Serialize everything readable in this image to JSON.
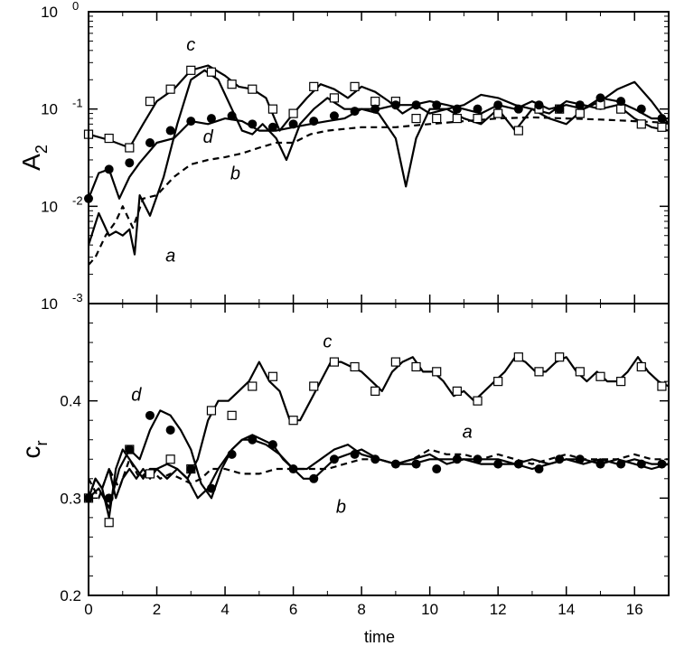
{
  "chart_data": [
    {
      "panel": "top",
      "type": "line",
      "ylabel_main": "A",
      "ylabel_sub": "2",
      "yscale": "log",
      "xlim": [
        0,
        17
      ],
      "ylim": [
        0.001,
        1
      ],
      "y_tick_labels": [
        {
          "base": "10",
          "exp": "-3"
        },
        {
          "base": "10",
          "exp": "-2"
        },
        {
          "base": "10",
          "exp": "-1"
        },
        {
          "base": "10",
          "exp": "0"
        }
      ],
      "series": [
        {
          "name": "a",
          "style": "solid",
          "marker": "none",
          "x": [
            0,
            0.3,
            0.6,
            0.8,
            1.0,
            1.2,
            1.35,
            1.5,
            1.8,
            2.2,
            2.6,
            3.0,
            3.4,
            3.8,
            4.2,
            4.5,
            4.8,
            5.1,
            5.5,
            5.8,
            6.2,
            6.6,
            7.0,
            7.5,
            8.0,
            8.5,
            9.0,
            9.3,
            9.6,
            10.0,
            10.5,
            11.0,
            11.5,
            12.0,
            12.5,
            13.0,
            13.5,
            14.0,
            14.5,
            15.0,
            15.5,
            16.0,
            16.5,
            17.0
          ],
          "y": [
            0.004,
            0.0085,
            0.005,
            0.0055,
            0.005,
            0.0058,
            0.0032,
            0.013,
            0.008,
            0.02,
            0.07,
            0.2,
            0.25,
            0.2,
            0.1,
            0.06,
            0.055,
            0.07,
            0.05,
            0.03,
            0.07,
            0.1,
            0.13,
            0.1,
            0.1,
            0.09,
            0.05,
            0.016,
            0.05,
            0.1,
            0.1,
            0.11,
            0.14,
            0.13,
            0.11,
            0.1,
            0.08,
            0.07,
            0.1,
            0.12,
            0.16,
            0.19,
            0.12,
            0.07
          ]
        },
        {
          "name": "b",
          "style": "dashed",
          "marker": "none",
          "x": [
            0,
            0.2,
            0.5,
            0.8,
            1.0,
            1.3,
            1.6,
            2.0,
            2.5,
            3.0,
            3.5,
            4.0,
            4.5,
            5.0,
            5.5,
            6.0,
            6.5,
            7.0,
            8.0,
            9.0,
            10.0,
            11.0,
            12.0,
            13.0,
            14.0,
            15.0,
            16.0,
            17.0
          ],
          "y": [
            0.0025,
            0.003,
            0.005,
            0.007,
            0.01,
            0.006,
            0.012,
            0.013,
            0.02,
            0.027,
            0.03,
            0.032,
            0.035,
            0.04,
            0.045,
            0.045,
            0.055,
            0.06,
            0.065,
            0.065,
            0.07,
            0.075,
            0.08,
            0.082,
            0.08,
            0.078,
            0.075,
            0.072
          ]
        },
        {
          "name": "c",
          "style": "solid",
          "marker": "open-square",
          "x": [
            0,
            0.6,
            1.2,
            1.6,
            2.0,
            2.5,
            3.0,
            3.5,
            4.0,
            4.4,
            4.8,
            5.2,
            5.6,
            6.0,
            6.4,
            6.8,
            7.2,
            7.6,
            8.0,
            8.4,
            8.8,
            9.2,
            9.6,
            10.0,
            10.5,
            11.0,
            11.5,
            12.0,
            12.5,
            13.0,
            13.5,
            14.0,
            14.5,
            15.0,
            15.5,
            16.0,
            16.5,
            17.0
          ],
          "y": [
            0.055,
            0.048,
            0.04,
            0.07,
            0.12,
            0.16,
            0.25,
            0.28,
            0.22,
            0.17,
            0.16,
            0.13,
            0.06,
            0.09,
            0.13,
            0.18,
            0.16,
            0.13,
            0.17,
            0.15,
            0.12,
            0.09,
            0.11,
            0.09,
            0.1,
            0.08,
            0.07,
            0.1,
            0.06,
            0.1,
            0.09,
            0.12,
            0.11,
            0.1,
            0.11,
            0.08,
            0.065,
            0.06
          ],
          "marker_x": [
            0,
            0.6,
            1.2,
            1.8,
            2.4,
            3.0,
            3.6,
            4.2,
            4.8,
            5.4,
            6.0,
            6.6,
            7.2,
            7.8,
            8.4,
            9.0,
            9.6,
            10.2,
            10.8,
            11.4,
            12.0,
            12.6,
            13.2,
            13.8,
            14.4,
            15.0,
            15.6,
            16.2,
            16.8
          ],
          "marker_y": [
            0.055,
            0.05,
            0.04,
            0.12,
            0.16,
            0.25,
            0.24,
            0.18,
            0.16,
            0.1,
            0.09,
            0.17,
            0.13,
            0.17,
            0.12,
            0.12,
            0.08,
            0.08,
            0.08,
            0.08,
            0.09,
            0.06,
            0.1,
            0.1,
            0.09,
            0.11,
            0.1,
            0.07,
            0.065
          ]
        },
        {
          "name": "d",
          "style": "solid",
          "marker": "filled-circle",
          "x": [
            0,
            0.3,
            0.6,
            0.9,
            1.2,
            1.5,
            2.0,
            2.5,
            3.0,
            3.5,
            4.0,
            4.5,
            5.0,
            5.5,
            6.0,
            6.5,
            7.0,
            7.5,
            8.0,
            8.5,
            9.0,
            9.5,
            10.0,
            10.5,
            11.0,
            11.5,
            12.0,
            12.5,
            13.0,
            13.5,
            14.0,
            14.5,
            15.0,
            15.5,
            16.0,
            16.5,
            17.0
          ],
          "y": [
            0.012,
            0.022,
            0.024,
            0.012,
            0.02,
            0.028,
            0.045,
            0.05,
            0.075,
            0.07,
            0.08,
            0.075,
            0.06,
            0.06,
            0.065,
            0.07,
            0.075,
            0.08,
            0.1,
            0.1,
            0.11,
            0.11,
            0.12,
            0.11,
            0.1,
            0.09,
            0.11,
            0.1,
            0.12,
            0.1,
            0.11,
            0.1,
            0.13,
            0.12,
            0.1,
            0.08,
            0.08
          ],
          "marker_x": [
            0,
            0.6,
            1.2,
            1.8,
            2.4,
            3.0,
            3.6,
            4.2,
            4.8,
            5.4,
            6.0,
            6.6,
            7.2,
            7.8,
            8.4,
            9.0,
            9.6,
            10.2,
            10.8,
            11.4,
            12.0,
            12.6,
            13.2,
            13.8,
            14.4,
            15.0,
            15.6,
            16.2,
            16.8
          ],
          "marker_y": [
            0.012,
            0.024,
            0.028,
            0.045,
            0.06,
            0.075,
            0.08,
            0.085,
            0.07,
            0.065,
            0.07,
            0.075,
            0.085,
            0.095,
            0.1,
            0.11,
            0.11,
            0.11,
            0.1,
            0.1,
            0.11,
            0.1,
            0.11,
            0.1,
            0.11,
            0.13,
            0.12,
            0.1,
            0.08
          ]
        }
      ],
      "annotations": [
        {
          "text": "c",
          "x": 3.0,
          "y": 0.4
        },
        {
          "text": "d",
          "x": 3.5,
          "y": 0.045
        },
        {
          "text": "b",
          "x": 4.3,
          "y": 0.019
        },
        {
          "text": "a",
          "x": 2.4,
          "y": 0.0027
        }
      ]
    },
    {
      "panel": "bottom",
      "type": "line",
      "ylabel_main": "c",
      "ylabel_sub": "r",
      "yscale": "linear",
      "xlim": [
        0,
        17
      ],
      "ylim": [
        0.2,
        0.5
      ],
      "y_ticks": [
        0.2,
        0.3,
        0.4
      ],
      "y_tick_labels": [
        "0.2",
        "0.3",
        "0.4"
      ],
      "xlabel": "time",
      "x_ticks": [
        0,
        2,
        4,
        6,
        8,
        10,
        12,
        14,
        16
      ],
      "x_tick_labels": [
        "0",
        "2",
        "4",
        "6",
        "8",
        "10",
        "12",
        "14",
        "16"
      ],
      "series": [
        {
          "name": "a",
          "style": "solid",
          "marker": "none",
          "x": [
            0,
            0.2,
            0.4,
            0.6,
            0.8,
            1.0,
            1.2,
            1.4,
            1.6,
            1.8,
            2.0,
            2.3,
            2.6,
            2.9,
            3.2,
            3.5,
            3.8,
            4.2,
            4.5,
            4.8,
            5.2,
            5.6,
            6.0,
            6.4,
            6.8,
            7.2,
            7.6,
            8.0,
            8.5,
            9.0,
            9.5,
            10.0,
            10.5,
            11.0,
            11.5,
            12.0,
            12.5,
            13.0,
            13.5,
            14.0,
            14.5,
            15.0,
            15.5,
            16.0,
            16.5,
            17.0
          ],
          "y": [
            0.3,
            0.32,
            0.31,
            0.33,
            0.3,
            0.32,
            0.33,
            0.32,
            0.33,
            0.32,
            0.33,
            0.32,
            0.33,
            0.32,
            0.3,
            0.31,
            0.33,
            0.35,
            0.36,
            0.36,
            0.355,
            0.345,
            0.33,
            0.33,
            0.34,
            0.35,
            0.355,
            0.345,
            0.34,
            0.335,
            0.34,
            0.345,
            0.335,
            0.34,
            0.335,
            0.335,
            0.335,
            0.34,
            0.335,
            0.34,
            0.335,
            0.34,
            0.335,
            0.34,
            0.335,
            0.335
          ]
        },
        {
          "name": "b",
          "style": "dashed",
          "marker": "none",
          "x": [
            0,
            0.3,
            0.6,
            0.9,
            1.2,
            1.5,
            1.8,
            2.1,
            2.4,
            2.7,
            3.0,
            3.3,
            3.6,
            4.0,
            4.5,
            5.0,
            5.5,
            6.0,
            6.5,
            7.0,
            7.5,
            8.0,
            8.5,
            9.0,
            9.5,
            10.0,
            10.5,
            11.0,
            11.5,
            12.0,
            12.5,
            13.0,
            13.5,
            14.0,
            14.5,
            15.0,
            15.5,
            16.0,
            16.5,
            17.0
          ],
          "y": [
            0.32,
            0.3,
            0.33,
            0.31,
            0.34,
            0.32,
            0.33,
            0.32,
            0.325,
            0.32,
            0.315,
            0.32,
            0.33,
            0.33,
            0.325,
            0.325,
            0.33,
            0.33,
            0.33,
            0.33,
            0.335,
            0.34,
            0.34,
            0.335,
            0.34,
            0.35,
            0.345,
            0.345,
            0.34,
            0.345,
            0.34,
            0.335,
            0.34,
            0.345,
            0.34,
            0.34,
            0.34,
            0.345,
            0.34,
            0.34
          ]
        },
        {
          "name": "c",
          "style": "solid",
          "marker": "open-square",
          "x": [
            0,
            0.2,
            0.4,
            0.6,
            0.8,
            1.0,
            1.2,
            1.4,
            1.6,
            1.8,
            2.0,
            2.3,
            2.6,
            2.9,
            3.2,
            3.5,
            3.8,
            4.1,
            4.4,
            4.7,
            5.0,
            5.3,
            5.6,
            5.9,
            6.2,
            6.5,
            6.8,
            7.1,
            7.4,
            7.7,
            8.0,
            8.3,
            8.6,
            8.9,
            9.2,
            9.5,
            9.8,
            10.1,
            10.4,
            10.7,
            11.0,
            11.3,
            11.6,
            11.9,
            12.2,
            12.5,
            12.8,
            13.1,
            13.4,
            13.7,
            14.0,
            14.3,
            14.6,
            14.9,
            15.2,
            15.5,
            15.8,
            16.1,
            16.4,
            16.7,
            17.0
          ],
          "y": [
            0.3,
            0.32,
            0.31,
            0.28,
            0.33,
            0.35,
            0.34,
            0.33,
            0.32,
            0.33,
            0.33,
            0.335,
            0.33,
            0.32,
            0.34,
            0.38,
            0.4,
            0.4,
            0.41,
            0.42,
            0.44,
            0.42,
            0.41,
            0.38,
            0.38,
            0.4,
            0.42,
            0.44,
            0.44,
            0.435,
            0.43,
            0.42,
            0.41,
            0.43,
            0.44,
            0.445,
            0.43,
            0.43,
            0.42,
            0.405,
            0.41,
            0.4,
            0.41,
            0.42,
            0.43,
            0.445,
            0.44,
            0.43,
            0.43,
            0.44,
            0.445,
            0.43,
            0.42,
            0.43,
            0.42,
            0.42,
            0.43,
            0.445,
            0.43,
            0.42,
            0.415
          ],
          "marker_x": [
            0,
            0.6,
            1.2,
            1.8,
            2.4,
            3.0,
            3.6,
            4.2,
            4.8,
            5.4,
            6.0,
            6.6,
            7.2,
            7.8,
            8.4,
            9.0,
            9.6,
            10.2,
            10.8,
            11.4,
            12.0,
            12.6,
            13.2,
            13.8,
            14.4,
            15.0,
            15.6,
            16.2,
            16.8
          ],
          "marker_y": [
            0.3,
            0.275,
            0.35,
            0.325,
            0.34,
            0.33,
            0.39,
            0.385,
            0.415,
            0.425,
            0.38,
            0.415,
            0.44,
            0.435,
            0.41,
            0.44,
            0.435,
            0.43,
            0.41,
            0.4,
            0.42,
            0.445,
            0.43,
            0.445,
            0.43,
            0.425,
            0.42,
            0.435,
            0.415
          ]
        },
        {
          "name": "d",
          "style": "solid",
          "marker": "filled-circle",
          "x": [
            0,
            0.3,
            0.6,
            0.9,
            1.2,
            1.5,
            1.8,
            2.1,
            2.4,
            2.7,
            3.0,
            3.3,
            3.6,
            3.9,
            4.2,
            4.5,
            4.8,
            5.1,
            5.4,
            5.7,
            6.0,
            6.3,
            6.6,
            6.9,
            7.2,
            7.6,
            8.0,
            8.5,
            9.0,
            9.5,
            10.0,
            10.5,
            11.0,
            11.5,
            12.0,
            12.5,
            13.0,
            13.5,
            14.0,
            14.5,
            15.0,
            15.5,
            16.0,
            16.5,
            17.0
          ],
          "y": [
            0.3,
            0.31,
            0.29,
            0.33,
            0.35,
            0.34,
            0.37,
            0.39,
            0.385,
            0.37,
            0.35,
            0.315,
            0.3,
            0.33,
            0.35,
            0.36,
            0.365,
            0.36,
            0.355,
            0.34,
            0.33,
            0.32,
            0.32,
            0.33,
            0.34,
            0.345,
            0.35,
            0.34,
            0.335,
            0.335,
            0.34,
            0.34,
            0.34,
            0.34,
            0.34,
            0.335,
            0.33,
            0.335,
            0.34,
            0.34,
            0.335,
            0.34,
            0.335,
            0.33,
            0.335
          ],
          "marker_x": [
            0,
            0.6,
            1.2,
            1.8,
            2.4,
            3.0,
            3.6,
            4.2,
            4.8,
            5.4,
            6.0,
            6.6,
            7.2,
            7.8,
            8.4,
            9.0,
            9.6,
            10.2,
            10.8,
            11.4,
            12.0,
            12.6,
            13.2,
            13.8,
            14.4,
            15.0,
            15.6,
            16.2,
            16.8
          ],
          "marker_y": [
            0.3,
            0.3,
            0.35,
            0.385,
            0.37,
            0.33,
            0.31,
            0.345,
            0.36,
            0.355,
            0.33,
            0.32,
            0.34,
            0.345,
            0.34,
            0.335,
            0.335,
            0.33,
            0.34,
            0.34,
            0.335,
            0.335,
            0.33,
            0.34,
            0.34,
            0.335,
            0.335,
            0.335,
            0.335
          ]
        }
      ],
      "annotations": [
        {
          "text": "c",
          "x": 7.0,
          "y": 0.455
        },
        {
          "text": "d",
          "x": 1.4,
          "y": 0.4
        },
        {
          "text": "a",
          "x": 11.1,
          "y": 0.362
        },
        {
          "text": "b",
          "x": 7.4,
          "y": 0.285
        }
      ]
    }
  ]
}
